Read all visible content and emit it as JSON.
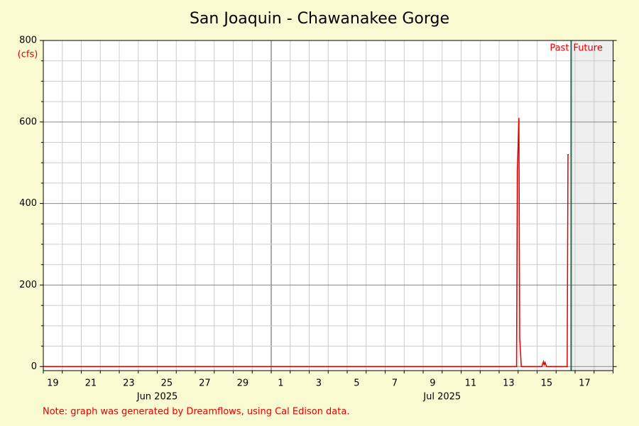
{
  "chart_data": {
    "type": "line",
    "title": "San Joaquin - Chawanakee Gorge",
    "ylabel": "(cfs)",
    "note": "Note: graph was generated by Dreamflows, using Cal Edison data.",
    "now": "2025-07-16T19:00",
    "past_label": "Past",
    "future_label": "Future",
    "xlim": [
      "2025-06-19",
      "2025-07-19"
    ],
    "xticks": [
      {
        "value": "2025-06-19T12:00",
        "label": "19"
      },
      {
        "value": "2025-06-21T12:00",
        "label": "21"
      },
      {
        "value": "2025-06-23T12:00",
        "label": "23"
      },
      {
        "value": "2025-06-25T12:00",
        "label": "25"
      },
      {
        "value": "2025-06-27T12:00",
        "label": "27"
      },
      {
        "value": "2025-06-29T12:00",
        "label": "29"
      },
      {
        "value": "2025-07-01T12:00",
        "label": "1"
      },
      {
        "value": "2025-07-03T12:00",
        "label": "3"
      },
      {
        "value": "2025-07-05T12:00",
        "label": "5"
      },
      {
        "value": "2025-07-07T12:00",
        "label": "7"
      },
      {
        "value": "2025-07-09T12:00",
        "label": "9"
      },
      {
        "value": "2025-07-11T12:00",
        "label": "11"
      },
      {
        "value": "2025-07-13T12:00",
        "label": "13"
      },
      {
        "value": "2025-07-15T12:00",
        "label": "15"
      },
      {
        "value": "2025-07-17T12:00",
        "label": "17"
      }
    ],
    "month_labels": [
      {
        "value": "2025-06-25",
        "label": "Jun 2025"
      },
      {
        "value": "2025-07-10",
        "label": "Jul 2025"
      }
    ],
    "ylim": [
      -10,
      800
    ],
    "yticks": [
      0,
      200,
      400,
      600,
      800
    ],
    "grid": true,
    "series": [
      {
        "name": "Flow",
        "color": "#e00000",
        "x": [
          "2025-06-19T00:00",
          "2025-07-13T22:00",
          "2025-07-13T23:00",
          "2025-07-14T01:00",
          "2025-07-14T02:00",
          "2025-07-14T04:00",
          "2025-07-15T06:00",
          "2025-07-15T08:00",
          "2025-07-15T09:00",
          "2025-07-15T10:00",
          "2025-07-15T12:00",
          "2025-07-16T14:00",
          "2025-07-16T15:00",
          "2025-07-16T16:00"
        ],
        "values": [
          0,
          0,
          480,
          610,
          70,
          0,
          0,
          12,
          3,
          10,
          0,
          0,
          520,
          520
        ]
      }
    ]
  }
}
